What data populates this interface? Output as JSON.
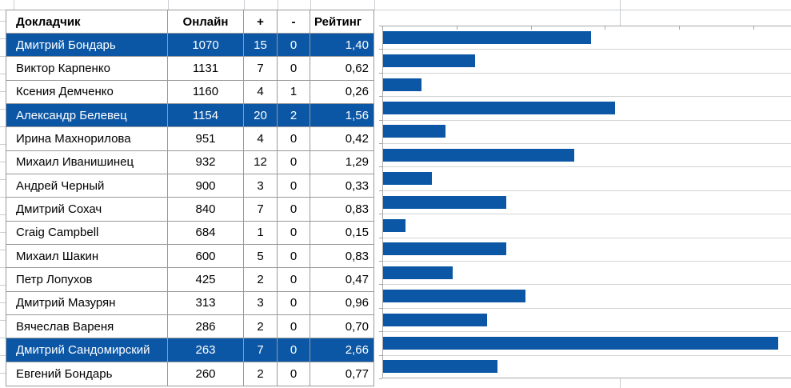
{
  "table": {
    "headers": {
      "speaker": "Докладчик",
      "online": "Онлайн",
      "plus": "+",
      "minus": "-",
      "rating": "Рейтинг"
    },
    "rows": [
      {
        "speaker": "Дмитрий Бондарь",
        "online": "1070",
        "plus": "15",
        "minus": "0",
        "rating": "1,40",
        "highlighted": true
      },
      {
        "speaker": "Виктор Карпенко",
        "online": "1131",
        "plus": "7",
        "minus": "0",
        "rating": "0,62",
        "highlighted": false
      },
      {
        "speaker": "Ксения Демченко",
        "online": "1160",
        "plus": "4",
        "minus": "1",
        "rating": "0,26",
        "highlighted": false
      },
      {
        "speaker": "Александр Белевец",
        "online": "1154",
        "plus": "20",
        "minus": "2",
        "rating": "1,56",
        "highlighted": true
      },
      {
        "speaker": "Ирина Махнорилова",
        "online": "951",
        "plus": "4",
        "minus": "0",
        "rating": "0,42",
        "highlighted": false
      },
      {
        "speaker": "Михаил Иванишинец",
        "online": "932",
        "plus": "12",
        "minus": "0",
        "rating": "1,29",
        "highlighted": false
      },
      {
        "speaker": "Андрей Черный",
        "online": "900",
        "plus": "3",
        "minus": "0",
        "rating": "0,33",
        "highlighted": false
      },
      {
        "speaker": "Дмитрий Сохач",
        "online": "840",
        "plus": "7",
        "minus": "0",
        "rating": "0,83",
        "highlighted": false
      },
      {
        "speaker": "Craig Campbell",
        "online": "684",
        "plus": "1",
        "minus": "0",
        "rating": "0,15",
        "highlighted": false
      },
      {
        "speaker": "Михаил Шакин",
        "online": "600",
        "plus": "5",
        "minus": "0",
        "rating": "0,83",
        "highlighted": false
      },
      {
        "speaker": "Петр Лопухов",
        "online": "425",
        "plus": "2",
        "minus": "0",
        "rating": "0,47",
        "highlighted": false
      },
      {
        "speaker": "Дмитрий Мазурян",
        "online": "313",
        "plus": "3",
        "minus": "0",
        "rating": "0,96",
        "highlighted": false
      },
      {
        "speaker": "Вячеслав Вареня",
        "online": "286",
        "plus": "2",
        "minus": "0",
        "rating": "0,70",
        "highlighted": false
      },
      {
        "speaker": "Дмитрий Сандомирский",
        "online": "263",
        "plus": "7",
        "minus": "0",
        "rating": "2,66",
        "highlighted": true
      },
      {
        "speaker": "Евгений Бондарь",
        "online": "260",
        "plus": "2",
        "minus": "0",
        "rating": "0,77",
        "highlighted": false
      }
    ]
  },
  "chart_data": {
    "type": "bar",
    "orientation": "horizontal",
    "categories": [
      "Дмитрий Бондарь",
      "Виктор Карпенко",
      "Ксения Демченко",
      "Александр Белевец",
      "Ирина Махнорилова",
      "Михаил Иванишинец",
      "Андрей Черный",
      "Дмитрий Сохач",
      "Craig Campbell",
      "Михаил Шакин",
      "Петр Лопухов",
      "Дмитрий Мазурян",
      "Вячеслав Вареня",
      "Дмитрий Сандомирский",
      "Евгений Бондарь"
    ],
    "values": [
      1.4,
      0.62,
      0.26,
      1.56,
      0.42,
      1.29,
      0.33,
      0.83,
      0.15,
      0.83,
      0.47,
      0.96,
      0.7,
      2.66,
      0.77
    ],
    "title": "",
    "xlabel": "",
    "ylabel": "",
    "xlim": [
      0,
      2.75
    ],
    "x_tick_interval": 0.5,
    "grid": true,
    "legend": false,
    "data_labels": false
  },
  "colors": {
    "accent_blue": "#0c57a5",
    "highlight_row_bg": "#0c57a5",
    "highlight_row_text": "#ffffff",
    "table_border": "#999999",
    "chart_axis": "#a6a6a6",
    "chart_gridline": "#d4d4d4",
    "sheet_gridline": "#c9cdd2",
    "text": "#000000",
    "background": "#ffffff"
  }
}
